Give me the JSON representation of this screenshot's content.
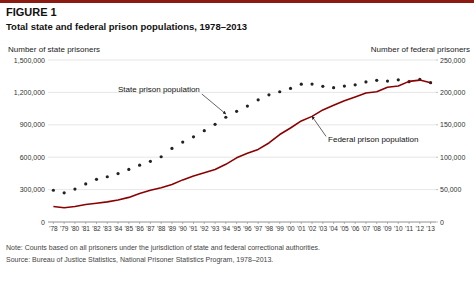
{
  "chart_data": {
    "type": "line",
    "title": "FIGURE 1",
    "subtitle": "Total state and federal prison populations, 1978–2013",
    "y_label": "Number of state prisoners",
    "y2_label": "Number of federal prisoners",
    "notes": [
      "Note: Counts based on all prisoners under the jurisdiction of state and federal correctional authorities.",
      "Source: Bureau of Justice Statistics, National Prisoner Statistics Program, 1978–2013."
    ],
    "x": [
      1978,
      1979,
      1980,
      1981,
      1982,
      1983,
      1984,
      1985,
      1986,
      1987,
      1988,
      1989,
      1990,
      1991,
      1992,
      1993,
      1994,
      1995,
      1996,
      1997,
      1998,
      1999,
      2000,
      2001,
      2002,
      2003,
      2004,
      2005,
      2006,
      2007,
      2008,
      2009,
      2010,
      2011,
      2012,
      2013
    ],
    "series": [
      {
        "type": "scatter",
        "marker": "dot",
        "color": "#222222",
        "values": [
          294000,
          270000,
          305000,
          353000,
          395000,
          419000,
          448000,
          487000,
          526000,
          562000,
          604000,
          681000,
          740000,
          789000,
          846000,
          904000,
          970000,
          1025000,
          1073000,
          1131000,
          1178000,
          1206000,
          1237000,
          1276000,
          1277000,
          1256000,
          1244000,
          1259000,
          1270000,
          1297000,
          1312000,
          1305000,
          1316000,
          1299000,
          1320000,
          1290000
        ]
      },
      {
        "type": "line",
        "line_style": "solid",
        "color": "#8b0000",
        "axis": "y2",
        "values": [
          24000,
          22000,
          24000,
          27000,
          29000,
          31000,
          34000,
          38000,
          44000,
          49000,
          53000,
          58000,
          65000,
          71000,
          76000,
          81000,
          89000,
          99000,
          106000,
          112000,
          122000,
          135000,
          145000,
          156000,
          163000,
          173000,
          180000,
          187000,
          193000,
          199000,
          201000,
          208000,
          210000,
          217000,
          219000,
          215000
        ]
      }
    ],
    "annotations": [
      {
        "text": "State prison population",
        "x": 1994,
        "y": 1000000
      },
      {
        "text": "Federal prison population",
        "x": 2002,
        "y": 163000,
        "axis": "y2"
      }
    ],
    "xlim": [
      1977.5,
      2013.5
    ],
    "xticks": [
      {
        "value": 1978,
        "label": "'78"
      },
      {
        "value": 1979,
        "label": "'79"
      },
      {
        "value": 1980,
        "label": "'80"
      },
      {
        "value": 1981,
        "label": "'81"
      },
      {
        "value": 1982,
        "label": "'82"
      },
      {
        "value": 1983,
        "label": "'83"
      },
      {
        "value": 1984,
        "label": "'84"
      },
      {
        "value": 1985,
        "label": "'85"
      },
      {
        "value": 1986,
        "label": "'86"
      },
      {
        "value": 1987,
        "label": "'87"
      },
      {
        "value": 1988,
        "label": "'88"
      },
      {
        "value": 1989,
        "label": "'89"
      },
      {
        "value": 1990,
        "label": "'90"
      },
      {
        "value": 1991,
        "label": "'91"
      },
      {
        "value": 1992,
        "label": "'92"
      },
      {
        "value": 1993,
        "label": "'93"
      },
      {
        "value": 1994,
        "label": "'94"
      },
      {
        "value": 1995,
        "label": "'95"
      },
      {
        "value": 1996,
        "label": "'96"
      },
      {
        "value": 1997,
        "label": "'97"
      },
      {
        "value": 1998,
        "label": "'98"
      },
      {
        "value": 1999,
        "label": "'99"
      },
      {
        "value": 2000,
        "label": "'00"
      },
      {
        "value": 2001,
        "label": "'01"
      },
      {
        "value": 2002,
        "label": "'02"
      },
      {
        "value": 2003,
        "label": "'03"
      },
      {
        "value": 2004,
        "label": "'04"
      },
      {
        "value": 2005,
        "label": "'05"
      },
      {
        "value": 2006,
        "label": "'06"
      },
      {
        "value": 2007,
        "label": "'07"
      },
      {
        "value": 2008,
        "label": "'08"
      },
      {
        "value": 2009,
        "label": "'09"
      },
      {
        "value": 2010,
        "label": "'10"
      },
      {
        "value": 2011,
        "label": "'11"
      },
      {
        "value": 2012,
        "label": "'12"
      },
      {
        "value": 2013,
        "label": "'13"
      }
    ],
    "ylim": [
      0,
      1500000
    ],
    "yticks": [
      0,
      {
        "value": 300000,
        "label": "300,000"
      },
      {
        "value": 600000,
        "label": "600,000"
      },
      {
        "value": 900000,
        "label": "900,000"
      },
      {
        "value": 1200000,
        "label": "1,200,000"
      },
      {
        "value": 1500000,
        "label": "1,500,000"
      }
    ],
    "y2lim": [
      0,
      250000
    ],
    "y2ticks": [
      0,
      {
        "value": 50000,
        "label": "50,000"
      },
      {
        "value": 100000,
        "label": "100,000"
      },
      {
        "value": 150000,
        "label": "150,000"
      },
      {
        "value": 200000,
        "label": "200,000"
      },
      {
        "value": 250000,
        "label": "250,000"
      }
    ],
    "grid": true
  }
}
